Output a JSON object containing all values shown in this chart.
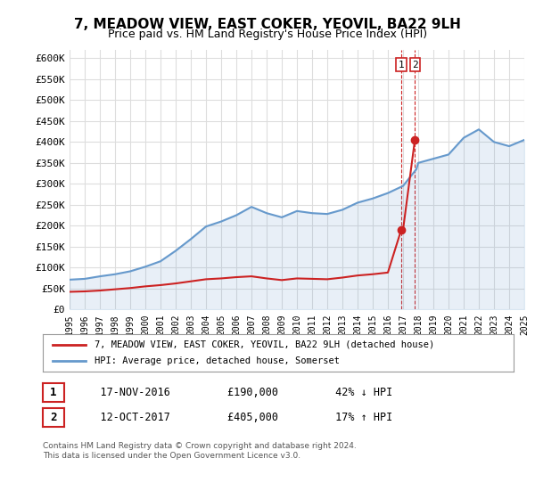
{
  "title": "7, MEADOW VIEW, EAST COKER, YEOVIL, BA22 9LH",
  "subtitle": "Price paid vs. HM Land Registry's House Price Index (HPI)",
  "ylabel_ticks": [
    "£0",
    "£50K",
    "£100K",
    "£150K",
    "£200K",
    "£250K",
    "£300K",
    "£350K",
    "£400K",
    "£450K",
    "£500K",
    "£550K",
    "£600K"
  ],
  "ytick_values": [
    0,
    50000,
    100000,
    150000,
    200000,
    250000,
    300000,
    350000,
    400000,
    450000,
    500000,
    550000,
    600000
  ],
  "ylim": [
    0,
    620000
  ],
  "xmin": 1995,
  "xmax": 2025,
  "hpi_color": "#6699cc",
  "price_color": "#cc2222",
  "dashed_color": "#cc2222",
  "legend_box_color": "#ffffff",
  "background_color": "#ffffff",
  "grid_color": "#dddddd",
  "transaction1_x": 2016.88,
  "transaction1_y": 190000,
  "transaction2_x": 2017.78,
  "transaction2_y": 405000,
  "transaction1_label": "1",
  "transaction2_label": "2",
  "legend_line1": "7, MEADOW VIEW, EAST COKER, YEOVIL, BA22 9LH (detached house)",
  "legend_line2": "HPI: Average price, detached house, Somerset",
  "footer_line1": "Contains HM Land Registry data © Crown copyright and database right 2024.",
  "footer_line2": "This data is licensed under the Open Government Licence v3.0.",
  "table_row1": [
    "1",
    "17-NOV-2016",
    "£190,000",
    "42% ↓ HPI"
  ],
  "table_row2": [
    "2",
    "12-OCT-2017",
    "£405,000",
    "17% ↑ HPI"
  ],
  "hpi_data_x": [
    1995,
    1996,
    1997,
    1998,
    1999,
    2000,
    2001,
    2002,
    2003,
    2004,
    2005,
    2006,
    2007,
    2008,
    2009,
    2010,
    2011,
    2012,
    2013,
    2014,
    2015,
    2016,
    2017,
    2017.88,
    2018,
    2019,
    2020,
    2021,
    2022,
    2023,
    2024,
    2025
  ],
  "hpi_data_y": [
    71000,
    73000,
    79000,
    84000,
    91000,
    102000,
    115000,
    140000,
    168000,
    198000,
    210000,
    225000,
    245000,
    230000,
    220000,
    235000,
    230000,
    228000,
    238000,
    255000,
    265000,
    278000,
    295000,
    335000,
    350000,
    360000,
    370000,
    410000,
    430000,
    400000,
    390000,
    405000
  ],
  "price_data_x": [
    1995,
    1996,
    1997,
    1998,
    1999,
    2000,
    2001,
    2002,
    2003,
    2004,
    2005,
    2006,
    2007,
    2008,
    2009,
    2010,
    2011,
    2012,
    2013,
    2014,
    2015,
    2016,
    2016.88,
    2017,
    2017.78
  ],
  "price_data_y": [
    42000,
    43000,
    45000,
    48000,
    51000,
    55000,
    58000,
    62000,
    67000,
    72000,
    74000,
    77000,
    79000,
    74000,
    70000,
    74000,
    73000,
    72000,
    76000,
    81000,
    84000,
    88000,
    190000,
    190000,
    405000
  ]
}
